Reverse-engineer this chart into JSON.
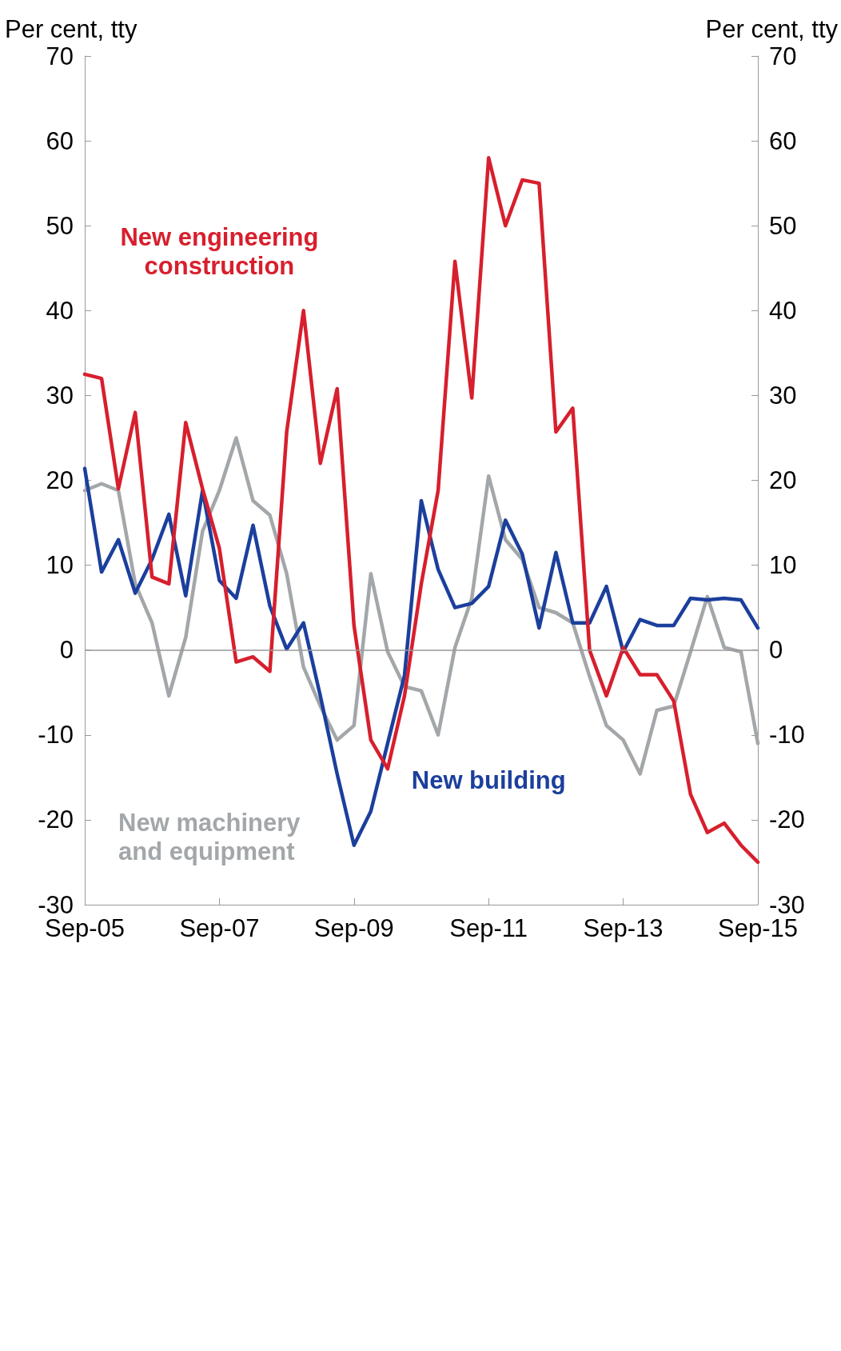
{
  "chart_data": {
    "type": "line",
    "ylabel": "Per cent, tty",
    "y2label": "Per cent, tty",
    "categories": [
      "Sep-05",
      null,
      null,
      null,
      null,
      null,
      null,
      null,
      "Sep-07",
      null,
      null,
      null,
      null,
      null,
      null,
      null,
      "Sep-09",
      null,
      null,
      null,
      null,
      null,
      null,
      null,
      "Sep-11",
      null,
      null,
      null,
      null,
      null,
      null,
      null,
      "Sep-13",
      null,
      null,
      null,
      null,
      null,
      null,
      null,
      "Sep-15"
    ],
    "ylim": [
      -30,
      70
    ],
    "yticks": [
      -30,
      -20,
      -10,
      0,
      10,
      20,
      30,
      40,
      50,
      60,
      70
    ],
    "y2lim": [
      -30,
      70
    ],
    "y2ticks": [
      -30,
      -20,
      -10,
      0,
      10,
      20,
      30,
      40,
      50,
      60,
      70
    ],
    "series": [
      {
        "name": "New machinery and equipment",
        "color": "#a3a7aa",
        "values": [
          18.8,
          19.6,
          18.8,
          7.8,
          3.2,
          -5.4,
          1.5,
          14,
          18.8,
          25,
          17.6,
          15.9,
          9,
          -2,
          -6.6,
          -10.6,
          -8.9,
          9,
          -0.2,
          -4.3,
          -4.8,
          -10,
          0.3,
          6.1,
          20.5,
          13,
          10.7,
          5,
          4.4,
          3.2,
          -3.1,
          -8.9,
          -10.6,
          -14.6,
          -7.1,
          -6.6,
          -0.2,
          6.3,
          0.3,
          -0.2,
          -11
        ]
      },
      {
        "name": "New building",
        "color": "#1b3f9c",
        "values": [
          21.4,
          9.2,
          13,
          6.7,
          10.7,
          16,
          6.4,
          18.8,
          8.2,
          6.1,
          14.7,
          5.2,
          0.1,
          3.2,
          -5.4,
          -14.6,
          -23,
          -19,
          -11,
          -3,
          17.6,
          9.5,
          5,
          5.5,
          7.5,
          15.3,
          11.3,
          2.6,
          11.5,
          3.2,
          3.2,
          7.5,
          -0.2,
          3.6,
          2.9,
          2.9,
          6.1,
          5.9,
          6.1,
          5.9,
          2.6
        ]
      },
      {
        "name": "New engineering construction",
        "color": "#d71f2d",
        "values": [
          32.5,
          32,
          19,
          28,
          8.6,
          7.8,
          26.8,
          19,
          12,
          -1.4,
          -0.8,
          -2.5,
          25.7,
          40,
          22,
          30.8,
          2.9,
          -10.6,
          -14,
          -5.4,
          7.8,
          18.8,
          45.8,
          29.7,
          58,
          50,
          55.4,
          55,
          25.7,
          28.5,
          0,
          -5.4,
          0.3,
          -2.9,
          -2.9,
          -6,
          -17,
          -21.5,
          -20.4,
          -23,
          -25
        ]
      }
    ],
    "ref_lines": [
      {
        "axis": "y",
        "value": 0,
        "color": "#999999"
      }
    ],
    "grid": false,
    "legend": false,
    "marker": "none",
    "line_style": "solid"
  }
}
